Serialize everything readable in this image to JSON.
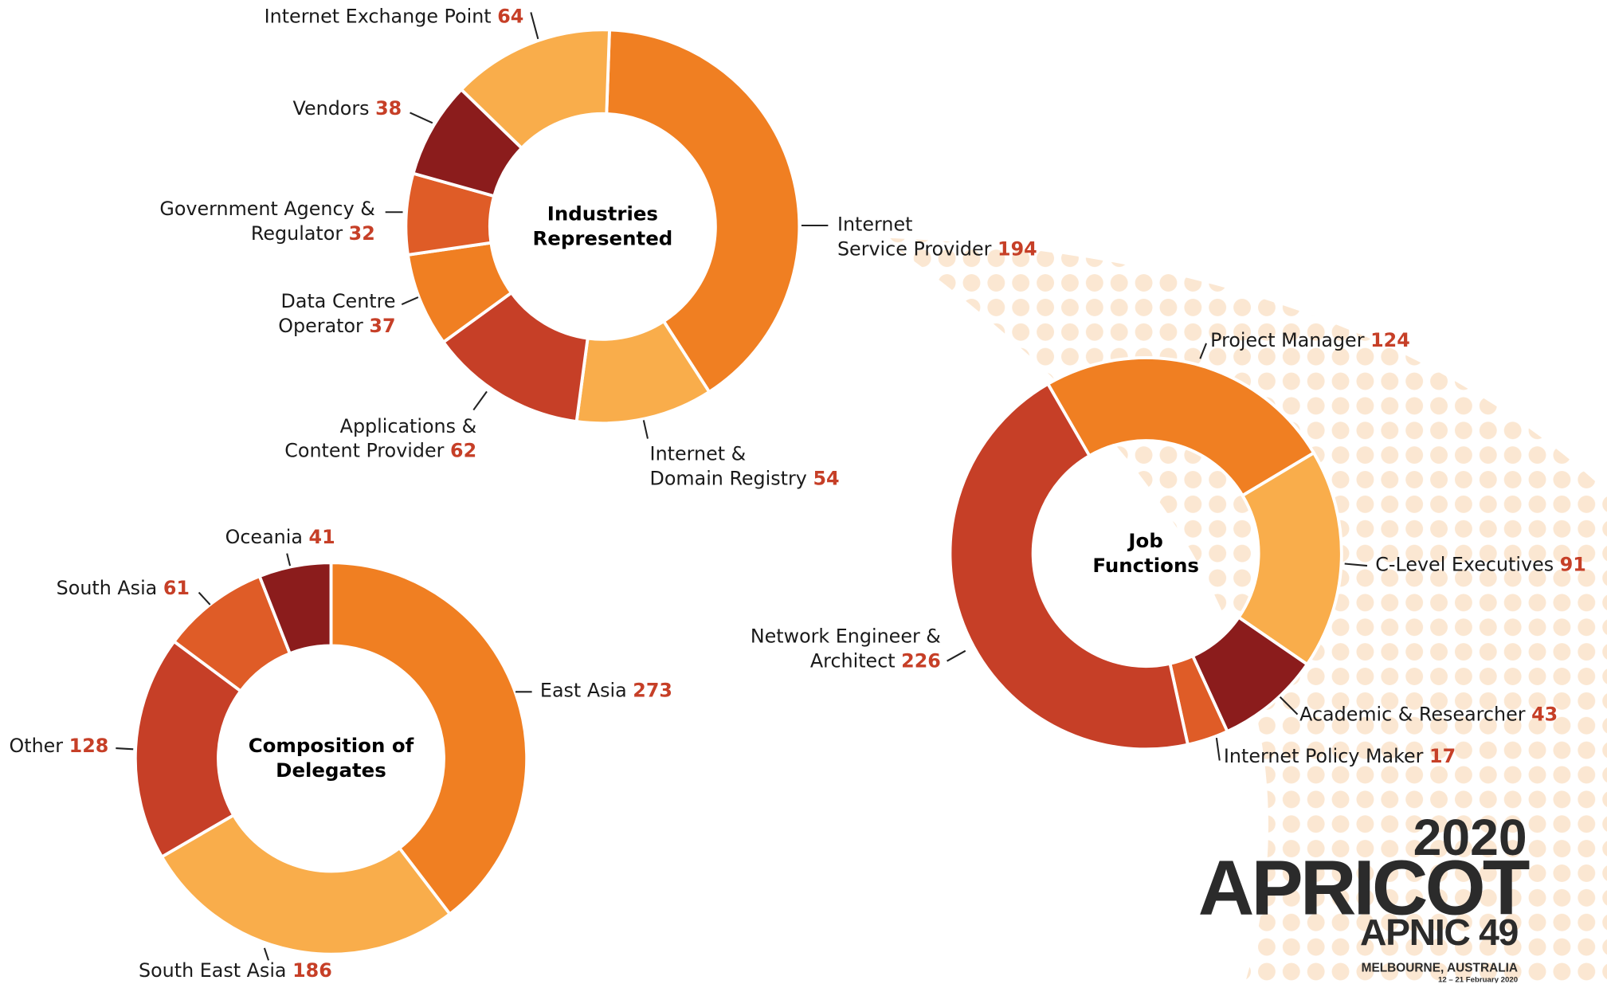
{
  "chart_data": [
    {
      "type": "pie",
      "title": "Industries\nRepresented",
      "categories": [
        "Internet\nService Provider",
        "Internet &\nDomain Registry",
        "Applications &\nContent Provider",
        "Data Centre\nOperator",
        "Government Agency &\nRegulator",
        "Vendors",
        "Internet Exchange Point"
      ],
      "values": [
        194,
        54,
        62,
        37,
        32,
        38,
        64
      ],
      "colors": [
        "#f07f22",
        "#f9ad4b",
        "#c63f27",
        "#f07f22",
        "#df5c27",
        "#8b1c1c",
        "#f9ad4b"
      ]
    },
    {
      "type": "pie",
      "title": "Composition of\nDelegates",
      "categories": [
        "East Asia",
        "South East Asia",
        "Other",
        "South Asia",
        "Oceania"
      ],
      "values": [
        273,
        186,
        128,
        61,
        41
      ],
      "colors": [
        "#f07f22",
        "#f9ad4b",
        "#c63f27",
        "#df5c27",
        "#8b1c1c"
      ]
    },
    {
      "type": "pie",
      "title": "Job\nFunctions",
      "categories": [
        "Project Manager",
        "C-Level Executives",
        "Academic & Researcher",
        "Internet Policy Maker",
        "Network Engineer &\nArchitect"
      ],
      "values": [
        124,
        91,
        43,
        17,
        226
      ],
      "colors": [
        "#f07f22",
        "#f9ad4b",
        "#8b1c1c",
        "#df5c27",
        "#c63f27"
      ]
    }
  ],
  "logo": {
    "year": "2020",
    "name": "APRICOT",
    "sub": "APNIC 49",
    "location": "MELBOURNE, AUSTRALIA",
    "dates": "12 – 21 February 2020"
  }
}
